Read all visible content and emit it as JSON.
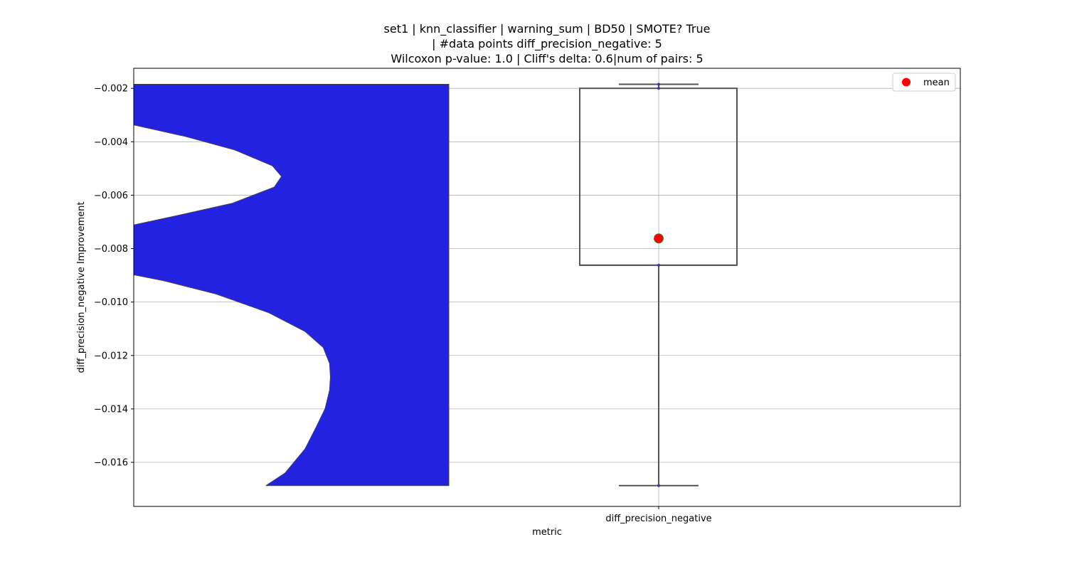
{
  "chart_data": {
    "type": "violin+box",
    "title_lines": [
      "set1 | knn_classifier | warning_sum | BD50 | SMOTE? True",
      "| #data points diff_precision_negative: 5",
      "Wilcoxon p-value: 1.0 | Cliff's delta: 0.6|num of pairs: 5"
    ],
    "xlabel": "metric",
    "ylabel": "diff_precision_negative Improvement",
    "categories": [
      "diff_precision_negative"
    ],
    "ylim": [
      -0.01765,
      -0.00125
    ],
    "yticks": [
      -0.002,
      -0.004,
      -0.006,
      -0.008,
      -0.01,
      -0.012,
      -0.014,
      -0.016
    ],
    "ytick_labels": [
      "−0.002",
      "−0.004",
      "−0.006",
      "−0.008",
      "−0.010",
      "−0.012",
      "−0.014",
      "−0.016"
    ],
    "grid": true,
    "legend": {
      "placement": "top-right",
      "entries": [
        {
          "label": "mean",
          "color": "#ff0000"
        }
      ]
    },
    "violin": {
      "color": "#2222e0",
      "y_min": -0.01687,
      "y_max": -0.00185,
      "profile": [
        [
          -0.01687,
          0.645
        ],
        [
          -0.0164,
          0.75
        ],
        [
          -0.0155,
          0.86
        ],
        [
          -0.0147,
          0.92
        ],
        [
          -0.014,
          0.97
        ],
        [
          -0.0133,
          0.995
        ],
        [
          -0.0128,
          1.0
        ],
        [
          -0.0123,
          0.995
        ],
        [
          -0.0117,
          0.96
        ],
        [
          -0.0111,
          0.86
        ],
        [
          -0.0104,
          0.66
        ],
        [
          -0.0097,
          0.37
        ],
        [
          -0.0092,
          0.08
        ],
        [
          -0.0088,
          -0.22
        ],
        [
          -0.0083,
          -0.46
        ],
        [
          -0.008,
          -0.55
        ],
        [
          -0.0077,
          -0.44
        ],
        [
          -0.0073,
          -0.21
        ],
        [
          -0.0068,
          0.13
        ],
        [
          -0.0063,
          0.46
        ],
        [
          -0.0057,
          0.69
        ],
        [
          -0.0053,
          0.73
        ],
        [
          -0.0049,
          0.68
        ],
        [
          -0.0043,
          0.47
        ],
        [
          -0.0038,
          0.2
        ],
        [
          -0.0033,
          -0.13
        ],
        [
          -0.003,
          -0.34
        ],
        [
          -0.0026,
          -0.56
        ],
        [
          -0.00185,
          -0.59
        ]
      ]
    },
    "box": {
      "q1": -0.00862,
      "median": -0.00862,
      "q3": -0.002,
      "whisker_low": -0.01687,
      "whisker_high": -0.00185,
      "mean": -0.00762,
      "points": [
        -0.01687,
        -0.00862,
        -0.002,
        -0.00185
      ],
      "color": "#555555"
    }
  }
}
